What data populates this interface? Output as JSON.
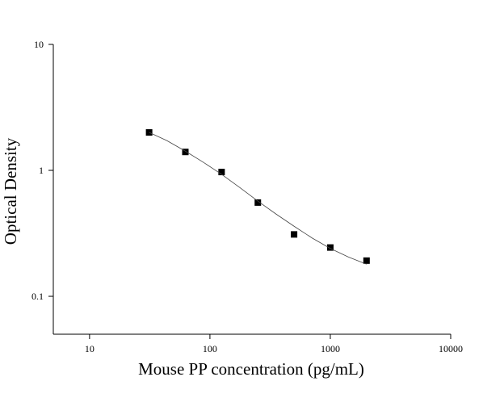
{
  "chart_data": {
    "type": "scatter",
    "x_label": "Mouse PP concentration (pg/mL)",
    "y_label": "Optical Density",
    "x_scale": "log",
    "y_scale": "log",
    "xlim": [
      5,
      10000
    ],
    "ylim": [
      0.05,
      10
    ],
    "xticks": [
      10,
      100,
      1000,
      10000
    ],
    "yticks": [
      0.1,
      1,
      10
    ],
    "series": [
      {
        "style": "markers",
        "color": "#000000",
        "x": [
          31.25,
          62.5,
          125,
          250,
          500,
          1000,
          2000
        ],
        "values": [
          2.0,
          1.4,
          0.97,
          0.555,
          0.31,
          0.244,
          0.192
        ]
      },
      {
        "style": "line",
        "color": "#444444",
        "x": [
          31.25,
          44,
          62.5,
          88,
          125,
          177,
          250,
          354,
          500,
          707,
          1000,
          1414,
          2000
        ],
        "values": [
          2.0,
          1.72,
          1.42,
          1.16,
          0.93,
          0.73,
          0.57,
          0.45,
          0.36,
          0.29,
          0.24,
          0.205,
          0.18
        ]
      }
    ]
  }
}
